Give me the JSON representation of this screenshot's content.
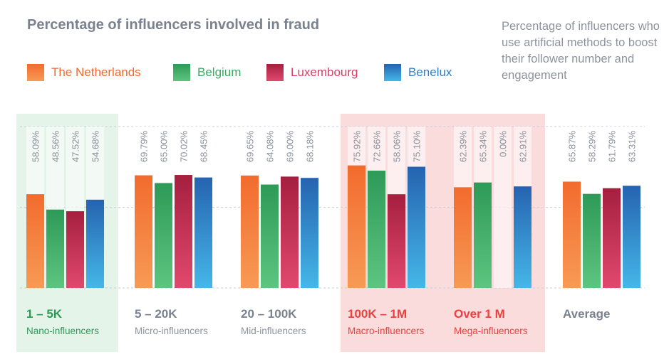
{
  "title": "Percentage of influencers involved in fraud",
  "subtitle": "Percentage of influencers who use artificial methods to boost their follower number and engagement",
  "colors": {
    "The Netherlands": "#f26b2e",
    "Belgium": "#3aaa63",
    "Luxembourg": "#c32a4e",
    "Benelux": "#2f7fc4",
    "highlight_green": "#e4f4e8",
    "highlight_red": "#fbdcdc",
    "track": "#f0f2f5",
    "label_gray": "#8a9099"
  },
  "legend": [
    {
      "label": "The Netherlands",
      "color": "#f26b2e"
    },
    {
      "label": "Belgium",
      "color": "#3aaa63"
    },
    {
      "label": "Luxembourg",
      "color": "#c32a4e"
    },
    {
      "label": "Benelux",
      "color": "#2f7fc4"
    }
  ],
  "chart_data": {
    "type": "bar",
    "title": "Percentage of influencers involved in fraud",
    "subtitle": "Percentage of influencers who use artificial methods to boost their follower number and engagement",
    "ylim": [
      0,
      100
    ],
    "legend_position": "top-left",
    "grid": true,
    "categories": [
      "1 – 5K",
      "5 – 20K",
      "20 – 100K",
      "100K – 1M",
      "Over 1 M",
      "Average"
    ],
    "category_subtitles": [
      "Nano-influencers",
      "Micro-influencers",
      "Mid-influencers",
      "Macro-influencers",
      "Mega-influencers",
      ""
    ],
    "category_highlight": [
      "green",
      "none",
      "none",
      "red",
      "red",
      "none"
    ],
    "series": [
      {
        "name": "The Netherlands",
        "values": [
          58.09,
          69.79,
          69.65,
          75.92,
          62.39,
          65.87
        ],
        "labels": [
          "58.09%",
          "69.79%",
          "69.65%",
          "75.92%",
          "62.39%",
          "65.87%"
        ]
      },
      {
        "name": "Belgium",
        "values": [
          48.56,
          65.0,
          64.08,
          72.66,
          65.34,
          58.29
        ],
        "labels": [
          "48.56%",
          "65.00%",
          "64.08%",
          "72.66%",
          "65.34%",
          "58.29%"
        ]
      },
      {
        "name": "Luxembourg",
        "values": [
          47.52,
          70.02,
          69.0,
          58.06,
          0.0,
          61.79
        ],
        "labels": [
          "47.52%",
          "70.02%",
          "69.00%",
          "58.06%",
          "0.00%",
          "61.79%"
        ]
      },
      {
        "name": "Benelux",
        "values": [
          54.68,
          68.45,
          68.18,
          75.1,
          62.91,
          63.31
        ],
        "labels": [
          "54.68%",
          "68.45%",
          "68.18%",
          "75.10%",
          "62.91%",
          "63.31%"
        ]
      }
    ]
  }
}
